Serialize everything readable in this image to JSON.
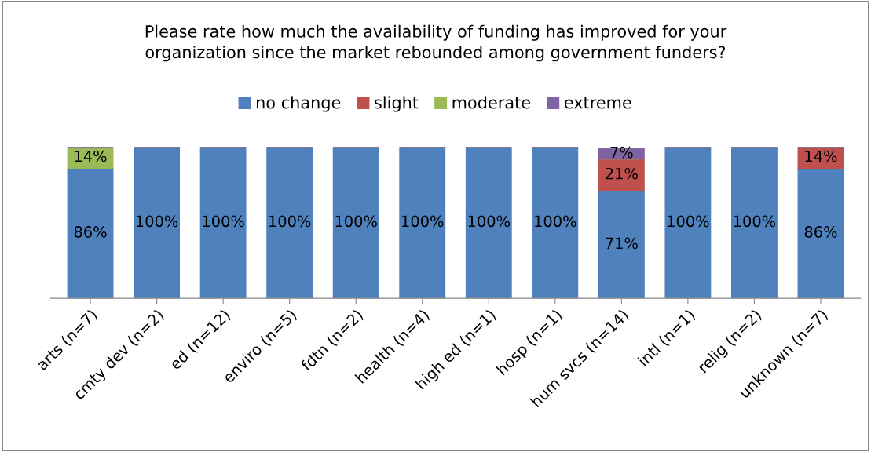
{
  "chart_data": {
    "type": "bar",
    "stacked": true,
    "title": "Please rate how much the availability of funding has improved for your\norganization since the market rebounded among government funders?",
    "categories": [
      "arts (n=7)",
      "cmty dev (n=2)",
      "ed (n=12)",
      "enviro (n=5)",
      "fdtn (n=2)",
      "health (n=4)",
      "high ed (n=1)",
      "hosp (n=1)",
      "hum svcs (n=14)",
      "intl (n=1)",
      "relig (n=2)",
      "unknown (n=7)"
    ],
    "series": [
      {
        "name": "no change",
        "color": "#4f81bd",
        "values": [
          86,
          100,
          100,
          100,
          100,
          100,
          100,
          100,
          71,
          100,
          100,
          86
        ],
        "value_labels": [
          "86%",
          "100%",
          "100%",
          "100%",
          "100%",
          "100%",
          "100%",
          "100%",
          "71%",
          "100%",
          "100%",
          "86%"
        ]
      },
      {
        "name": "slight",
        "color": "#c0504d",
        "values": [
          null,
          null,
          null,
          null,
          null,
          null,
          null,
          null,
          21,
          null,
          null,
          14
        ],
        "value_labels": [
          null,
          null,
          null,
          null,
          null,
          null,
          null,
          null,
          "21%",
          null,
          null,
          "14%"
        ]
      },
      {
        "name": "moderate",
        "color": "#9bbb59",
        "values": [
          14,
          null,
          null,
          null,
          null,
          null,
          null,
          null,
          null,
          null,
          null,
          null
        ],
        "value_labels": [
          "14%",
          null,
          null,
          null,
          null,
          null,
          null,
          null,
          null,
          null,
          null,
          null
        ]
      },
      {
        "name": "extreme",
        "color": "#8064a2",
        "values": [
          null,
          null,
          null,
          null,
          null,
          null,
          null,
          null,
          7,
          null,
          null,
          null
        ],
        "value_labels": [
          null,
          null,
          null,
          null,
          null,
          null,
          null,
          null,
          "7%",
          null,
          null,
          null
        ]
      }
    ],
    "legend": "top",
    "grid": false,
    "tick_labels": "x"
  }
}
